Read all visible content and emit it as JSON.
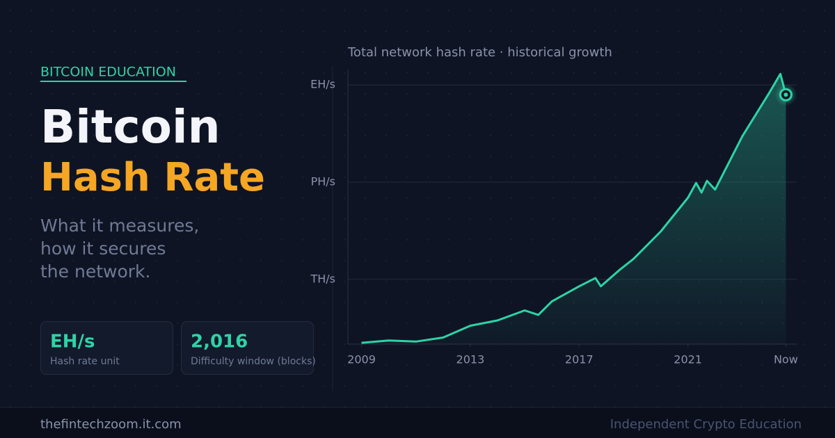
{
  "kicker": "BITCOIN EDUCATION",
  "headline": {
    "line1": "Bitcoin",
    "line2": "Hash Rate"
  },
  "subtitle": [
    "What it measures,",
    "how it secures",
    "the network."
  ],
  "cards": [
    {
      "value": "EH/s",
      "label": "Hash rate unit"
    },
    {
      "value": "2,016",
      "label": "Difficulty window (blocks)"
    }
  ],
  "footer": {
    "site": "thefintechzoom.it.com",
    "tagline": "Independent Crypto Education"
  },
  "chart_data": {
    "type": "line",
    "title": "Total network hash rate · historical growth",
    "log_y": true,
    "grid": true,
    "color": "#2ed3a6",
    "x": [
      2009,
      2010,
      2011,
      2012,
      2013,
      2014,
      2015,
      2015.5,
      2016,
      2017,
      2017.6,
      2017.8,
      2018.5,
      2019,
      2020,
      2021,
      2021.3,
      2021.5,
      2021.7,
      2022,
      2023,
      2024,
      2024.4,
      2024.6
    ],
    "values": [
      11000000000.0,
      13000000000.0,
      12000000000.0,
      16000000000.0,
      37000000000.0,
      54000000000.0,
      110000000000.0,
      80000000000.0,
      210000000000.0,
      610000000000.0,
      1100000000000.0,
      610000000000.0,
      2000000000000.0,
      4300000000000.0,
      30000000000000.0,
      330000000000000.0,
      950000000000000.0,
      480000000000000.0,
      1100000000000000.0,
      590000000000000.0,
      2.6e+16,
      5.9e+17,
      2.2e+18,
      5e+17
    ],
    "xlim": [
      2008.5,
      2025
    ],
    "xticks": [
      2009,
      2013,
      2017,
      2021,
      {
        "value": 2024.6,
        "label": "Now"
      }
    ],
    "ylim": [
      10000000000.0,
      3e+18
    ],
    "yticks": [
      {
        "value": 1000000000000.0,
        "label": "TH/s"
      },
      {
        "value": 1000000000000000.0,
        "label": "PH/s"
      },
      {
        "value": 1e+18,
        "label": "EH/s"
      }
    ]
  }
}
